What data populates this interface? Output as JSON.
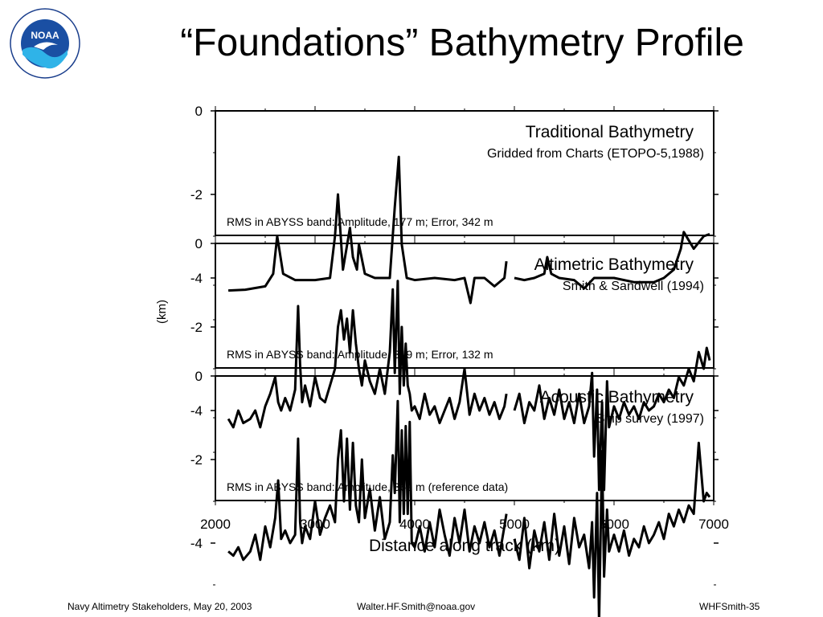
{
  "slide": {
    "title": "“Foundations” Bathymetry Profile",
    "logo": {
      "icon": "noaa-emblem-icon",
      "center_text": "NOAA"
    }
  },
  "footer": {
    "left": "Navy Altimetry Stakeholders, May 20, 2003",
    "center": "Walter.HF.Smith@noaa.gov",
    "right": "WHFSmith-35"
  },
  "chart_data": {
    "type": "line",
    "xlabel": "Distance along track (km)",
    "ylabel": "(km)",
    "xlim": [
      2000,
      7000
    ],
    "x_ticks": [
      2000,
      3000,
      4000,
      5000,
      6000,
      7000
    ],
    "ylim": [
      -6,
      0
    ],
    "y_ticks": [
      0,
      -2,
      -4
    ],
    "panels": [
      {
        "name": "Traditional Bathymetry",
        "subtitle": "Gridded from Charts (ETOPO-5,1988)",
        "note": "RMS in ABYSS band:  Amplitude, 177 m; Error, 342 m",
        "series": [
          {
            "x": [
              2130,
              2300,
              2500,
              2580,
              2620,
              2640,
              2680,
              2800,
              3000,
              3150,
              3200,
              3230,
              3280,
              3350,
              3380,
              3420,
              3440,
              3500,
              3600,
              3750,
              3800,
              3840,
              3870,
              3920,
              4000,
              4200,
              4400,
              4500,
              4560,
              4600,
              4700,
              4800,
              4900,
              4920
            ],
            "y": [
              -4.3,
              -4.28,
              -4.2,
              -3.9,
              -3.0,
              -3.3,
              -3.9,
              -4.05,
              -4.05,
              -4.0,
              -3.0,
              -2.0,
              -3.8,
              -2.8,
              -3.5,
              -3.8,
              -3.2,
              -3.9,
              -4.0,
              -4.0,
              -2.3,
              -1.1,
              -3.2,
              -4.0,
              -4.05,
              -4.0,
              -4.05,
              -4.0,
              -4.6,
              -4.0,
              -4.0,
              -4.2,
              -4.0,
              -3.6
            ]
          },
          {
            "x": [
              5000,
              5100,
              5200,
              5300,
              5330,
              5370,
              5450,
              5600,
              5700,
              5800,
              6000,
              6200,
              6400,
              6500,
              6600,
              6670,
              6700,
              6800,
              6900,
              6960
            ],
            "y": [
              -4.0,
              -4.05,
              -4.0,
              -3.9,
              -3.5,
              -3.9,
              -4.0,
              -4.05,
              -4.25,
              -4.0,
              -4.0,
              -4.1,
              -4.1,
              -4.0,
              -3.8,
              -3.3,
              -2.9,
              -3.3,
              -3.0,
              -2.95
            ]
          }
        ]
      },
      {
        "name": "Altimetric Bathymetry",
        "subtitle": "Smith & Sandwell (1994)",
        "note": "RMS in ABYSS band:  Amplitude, 319 m; Error, 132 m",
        "series": [
          {
            "x": [
              2130,
              2180,
              2230,
              2280,
              2350,
              2400,
              2450,
              2500,
              2550,
              2600,
              2630,
              2660,
              2700,
              2750,
              2800,
              2830,
              2850,
              2870,
              2900,
              2950,
              3000,
              3050,
              3100,
              3150,
              3200,
              3230,
              3260,
              3290,
              3320,
              3350,
              3380,
              3410,
              3440,
              3470,
              3500,
              3550,
              3600,
              3650,
              3700,
              3750,
              3780,
              3800,
              3830,
              3850,
              3870,
              3890,
              3910,
              3930,
              3950,
              3970,
              4000,
              4050,
              4100,
              4150,
              4200,
              4250,
              4300,
              4350,
              4400,
              4450,
              4500,
              4550,
              4600,
              4650,
              4700,
              4750,
              4800,
              4850,
              4900,
              4920
            ],
            "y": [
              -4.2,
              -4.4,
              -4.0,
              -4.3,
              -4.2,
              -4.0,
              -4.4,
              -3.9,
              -3.6,
              -3.2,
              -3.8,
              -4.0,
              -3.7,
              -4.0,
              -3.5,
              -1.5,
              -2.9,
              -3.8,
              -3.4,
              -3.9,
              -3.2,
              -3.7,
              -3.8,
              -3.4,
              -3.0,
              -2.0,
              -1.6,
              -2.3,
              -1.8,
              -2.6,
              -1.6,
              -2.4,
              -3.0,
              -3.4,
              -2.8,
              -3.3,
              -3.6,
              -3.0,
              -3.6,
              -2.6,
              -1.1,
              -3.1,
              -0.9,
              -3.6,
              -2.0,
              -3.4,
              -2.4,
              -3.4,
              -3.6,
              -4.0,
              -3.9,
              -4.2,
              -3.6,
              -4.1,
              -3.9,
              -4.3,
              -4.0,
              -3.7,
              -4.2,
              -3.8,
              -3.0,
              -4.1,
              -3.6,
              -4.0,
              -3.7,
              -4.1,
              -3.8,
              -4.2,
              -3.9,
              -3.6
            ]
          },
          {
            "x": [
              5000,
              5050,
              5100,
              5150,
              5200,
              5250,
              5300,
              5350,
              5400,
              5450,
              5500,
              5550,
              5600,
              5650,
              5700,
              5750,
              5780,
              5800,
              5830,
              5850,
              5880,
              5900,
              5930,
              5950,
              6000,
              6050,
              6100,
              6150,
              6200,
              6250,
              6300,
              6350,
              6400,
              6450,
              6500,
              6550,
              6600,
              6650,
              6700,
              6750,
              6800,
              6850,
              6900,
              6930,
              6960
            ],
            "y": [
              -4.0,
              -3.6,
              -4.3,
              -3.8,
              -4.0,
              -3.4,
              -4.2,
              -3.7,
              -4.1,
              -3.5,
              -4.2,
              -3.8,
              -4.3,
              -3.6,
              -4.3,
              -3.9,
              -3.1,
              -5.1,
              -3.5,
              -5.9,
              -3.8,
              -5.9,
              -3.3,
              -4.4,
              -3.9,
              -4.2,
              -3.8,
              -4.1,
              -3.9,
              -4.2,
              -3.8,
              -4.0,
              -3.9,
              -3.6,
              -3.8,
              -3.5,
              -3.7,
              -3.2,
              -3.4,
              -3.0,
              -3.3,
              -2.6,
              -3.0,
              -2.5,
              -2.8
            ]
          }
        ]
      },
      {
        "name": "Acoustic Bathymetry",
        "subtitle": "Ship survey (1997)",
        "note": "RMS in ABYSS band:  Amplitude, 369 m (reference data)",
        "series": [
          {
            "x": [
              2130,
              2180,
              2230,
              2280,
              2350,
              2400,
              2450,
              2500,
              2550,
              2600,
              2630,
              2660,
              2700,
              2750,
              2800,
              2830,
              2850,
              2870,
              2900,
              2950,
              3000,
              3050,
              3100,
              3150,
              3200,
              3230,
              3260,
              3290,
              3320,
              3350,
              3380,
              3410,
              3440,
              3470,
              3500,
              3550,
              3600,
              3650,
              3700,
              3750,
              3780,
              3800,
              3830,
              3850,
              3870,
              3890,
              3910,
              3930,
              3950,
              3970,
              4000,
              4050,
              4100,
              4150,
              4200,
              4250,
              4300,
              4350,
              4400,
              4450,
              4500,
              4550,
              4600,
              4650,
              4700,
              4750,
              4800,
              4850,
              4900,
              4920
            ],
            "y": [
              -4.2,
              -4.3,
              -4.1,
              -4.4,
              -4.2,
              -3.8,
              -4.4,
              -3.6,
              -4.1,
              -3.4,
              -2.5,
              -3.9,
              -3.7,
              -4.0,
              -3.8,
              -1.5,
              -3.5,
              -4.0,
              -3.6,
              -3.9,
              -3.0,
              -3.8,
              -3.4,
              -3.1,
              -3.5,
              -2.0,
              -1.3,
              -3.0,
              -1.5,
              -3.2,
              -1.6,
              -3.1,
              -3.5,
              -2.0,
              -3.4,
              -2.7,
              -3.7,
              -2.9,
              -3.9,
              -3.5,
              -1.9,
              -2.8,
              -0.6,
              -3.5,
              -1.3,
              -3.3,
              -1.2,
              -3.3,
              -1.1,
              -4.0,
              -4.1,
              -3.6,
              -4.2,
              -3.5,
              -4.1,
              -3.2,
              -3.8,
              -4.3,
              -3.4,
              -4.0,
              -3.2,
              -4.2,
              -3.6,
              -4.0,
              -3.5,
              -4.1,
              -3.7,
              -4.3,
              -3.6,
              -3.3
            ]
          },
          {
            "x": [
              5000,
              5050,
              5100,
              5150,
              5200,
              5250,
              5300,
              5350,
              5400,
              5450,
              5500,
              5550,
              5600,
              5650,
              5700,
              5750,
              5780,
              5800,
              5830,
              5850,
              5880,
              5900,
              5930,
              5950,
              6000,
              6050,
              6100,
              6150,
              6200,
              6250,
              6300,
              6350,
              6400,
              6450,
              6500,
              6550,
              6600,
              6650,
              6700,
              6750,
              6800,
              6850,
              6900,
              6930,
              6960
            ],
            "y": [
              -3.9,
              -4.4,
              -3.4,
              -4.6,
              -3.7,
              -4.2,
              -3.5,
              -4.4,
              -3.3,
              -4.3,
              -3.6,
              -4.5,
              -3.4,
              -4.1,
              -3.8,
              -4.6,
              -3.5,
              -5.3,
              -2.8,
              -5.9,
              -1.8,
              -4.8,
              -3.2,
              -4.2,
              -3.8,
              -4.2,
              -3.7,
              -4.3,
              -3.9,
              -4.1,
              -3.6,
              -4.0,
              -3.8,
              -3.5,
              -3.9,
              -3.3,
              -3.6,
              -3.2,
              -3.5,
              -3.1,
              -3.3,
              -1.6,
              -3.0,
              -2.8,
              -2.9
            ]
          }
        ]
      }
    ]
  }
}
